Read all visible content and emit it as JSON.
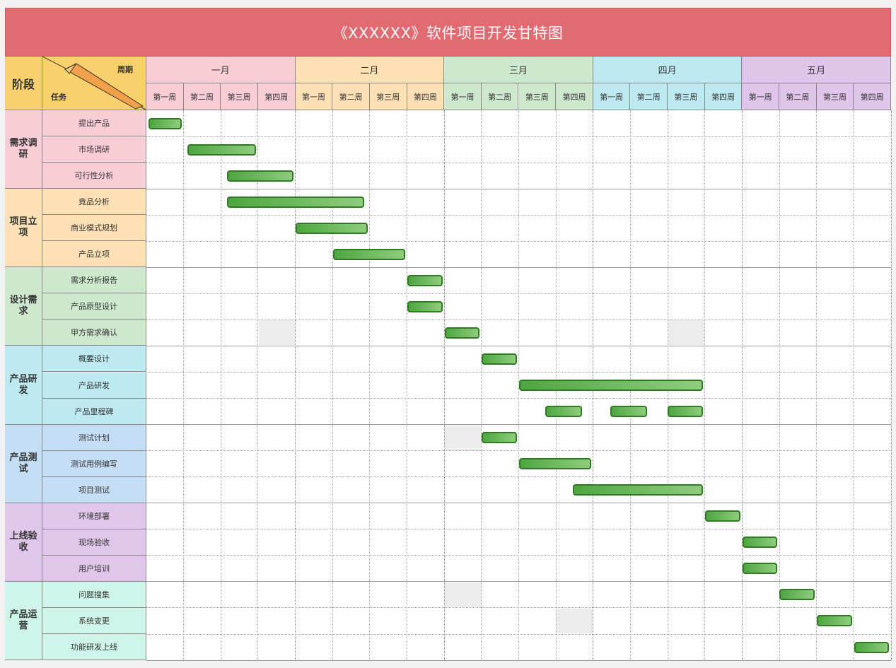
{
  "title": "《XXXXXX》软件项目开发甘特图",
  "header": {
    "phase_label": "阶段",
    "period_label": "周期",
    "task_label": "任务"
  },
  "months": [
    {
      "label": "一月",
      "color": "#f9cdd6"
    },
    {
      "label": "二月",
      "color": "#fde0b3"
    },
    {
      "label": "三月",
      "color": "#cde8cc"
    },
    {
      "label": "四月",
      "color": "#bdeaf0"
    },
    {
      "label": "五月",
      "color": "#e0c5ea"
    }
  ],
  "weeks": [
    "第一周",
    "第二周",
    "第三周",
    "第四周"
  ],
  "phases": [
    {
      "label": "需求调研",
      "color": "#f9cdd6",
      "tasks": [
        "提出产品",
        "市场调研",
        "可行性分析"
      ]
    },
    {
      "label": "项目立项",
      "color": "#fde0b3",
      "tasks": [
        "竟品分析",
        "商业模式规划",
        "产品立项"
      ]
    },
    {
      "label": "设计需求",
      "color": "#cde8cc",
      "tasks": [
        "需求分析报告",
        "产品原型设计",
        "甲方需求确认"
      ]
    },
    {
      "label": "产品研发",
      "color": "#bdeaf0",
      "tasks": [
        "概要设计",
        "产品研发",
        "产品里程碑"
      ]
    },
    {
      "label": "产品测试",
      "color": "#c4def6",
      "tasks": [
        "测试计划",
        "测试用例编写",
        "项目测试"
      ]
    },
    {
      "label": "上线验收",
      "color": "#dfc6ea",
      "tasks": [
        "环境部署",
        "现场验收",
        "用户培训"
      ]
    },
    {
      "label": "产品运营",
      "color": "#cff5ea",
      "tasks": [
        "问题搜集",
        "系统变更",
        "功能研发上线"
      ]
    }
  ],
  "chart_data": {
    "type": "gantt",
    "title": "《XXXXXX》软件项目开发甘特图",
    "time_unit": "week",
    "bars": [
      {
        "task": "提出产品",
        "start": 0,
        "end": 0.95
      },
      {
        "task": "市场调研",
        "start": 1.05,
        "end": 2.95
      },
      {
        "task": "可行性分析",
        "start": 2.1,
        "end": 3.95
      },
      {
        "task": "竟品分析",
        "start": 2.1,
        "end": 5.85
      },
      {
        "task": "商业模式规划",
        "start": 3.95,
        "end": 5.95
      },
      {
        "task": "产品立项",
        "start": 4.95,
        "end": 6.95
      },
      {
        "task": "需求分析报告",
        "start": 6.95,
        "end": 7.95
      },
      {
        "task": "产品原型设计",
        "start": 6.95,
        "end": 7.95
      },
      {
        "task": "甲方需求确认",
        "start": 7.95,
        "end": 8.95
      },
      {
        "task": "概要设计",
        "start": 8.95,
        "end": 9.95
      },
      {
        "task": "产品研发",
        "start": 9.95,
        "end": 14.95
      },
      {
        "task": "产品里程碑",
        "start": 10.65,
        "end": 11.7
      },
      {
        "task": "产品里程碑",
        "start": 12.4,
        "end": 13.45
      },
      {
        "task": "产品里程碑",
        "start": 13.95,
        "end": 14.95
      },
      {
        "task": "测试计划",
        "start": 8.95,
        "end": 9.95
      },
      {
        "task": "测试用例编写",
        "start": 9.95,
        "end": 11.95
      },
      {
        "task": "项目测试",
        "start": 11.4,
        "end": 14.95
      },
      {
        "task": "环境部署",
        "start": 14.95,
        "end": 15.95
      },
      {
        "task": "现场验收",
        "start": 15.95,
        "end": 16.95
      },
      {
        "task": "用户培训",
        "start": 15.95,
        "end": 16.95
      },
      {
        "task": "问题搜集",
        "start": 16.95,
        "end": 17.95
      },
      {
        "task": "系统变更",
        "start": 17.95,
        "end": 18.95
      },
      {
        "task": "功能研发上线",
        "start": 18.95,
        "end": 19.95
      }
    ],
    "shaded_cells": [
      {
        "row": 8,
        "week": 3
      },
      {
        "row": 8,
        "week": 14
      },
      {
        "row": 12,
        "week": 8
      },
      {
        "row": 18,
        "week": 8
      },
      {
        "row": 19,
        "week": 11
      }
    ]
  }
}
